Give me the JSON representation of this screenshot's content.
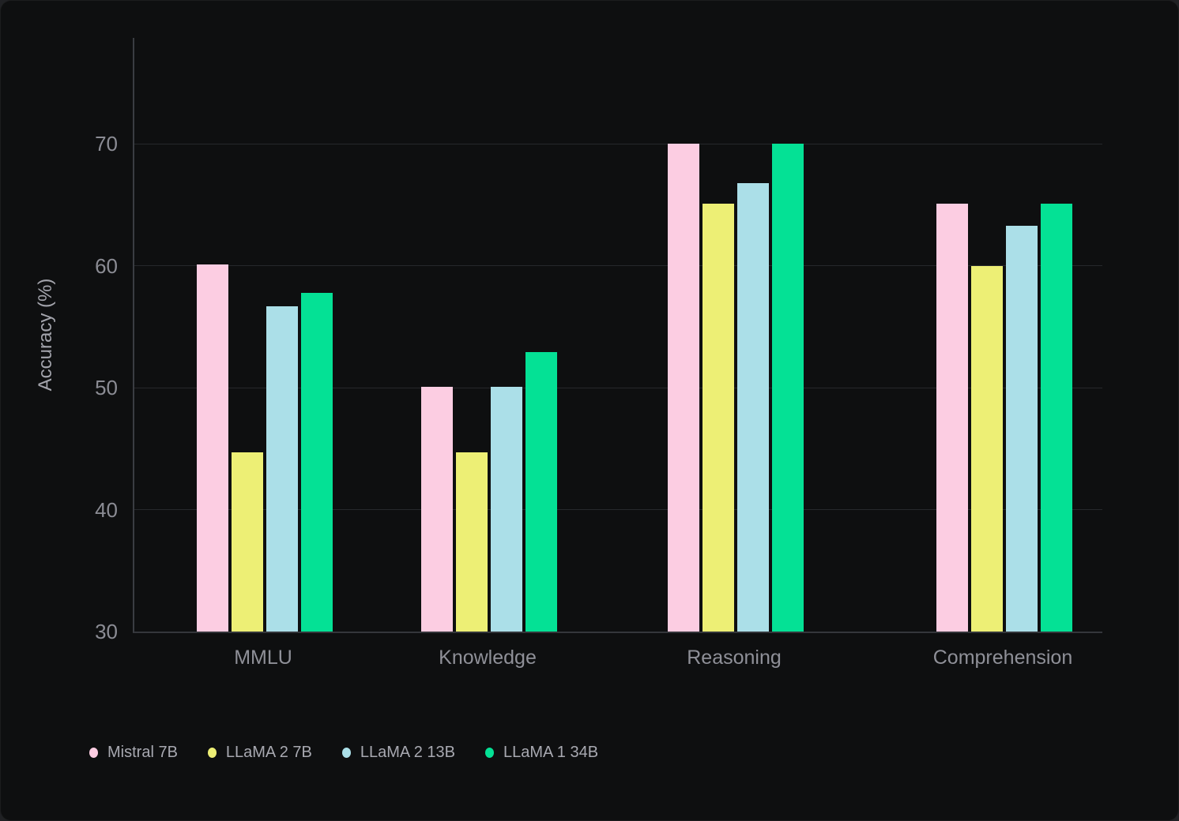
{
  "chart_data": {
    "type": "bar",
    "title": "",
    "xlabel": "",
    "ylabel": "Accuracy (%)",
    "categories": [
      "MMLU",
      "Knowledge",
      "Reasoning",
      "Comprehension"
    ],
    "series": [
      {
        "name": "Mistral 7B",
        "color": "#fccde2",
        "values": [
          60.1,
          50.1,
          70.0,
          65.1
        ]
      },
      {
        "name": "LLaMA 2 7B",
        "color": "#edef75",
        "values": [
          44.7,
          44.7,
          65.1,
          60.0
        ]
      },
      {
        "name": "LLaMA 2 13B",
        "color": "#abdfe8",
        "values": [
          56.7,
          50.1,
          66.8,
          63.3
        ]
      },
      {
        "name": "LLaMA 1 34B",
        "color": "#04e195",
        "values": [
          57.8,
          52.9,
          70.0,
          65.1
        ]
      }
    ],
    "ylim": [
      30,
      78.7
    ],
    "yticks": [
      30,
      40,
      50,
      60,
      70
    ],
    "grid": true,
    "legend_position": "bottom-left"
  },
  "colors": {
    "background": "#0e0f10",
    "gridline": "#26282c",
    "axis_spine": "#3a3d42",
    "tick_text": "#8b8c94",
    "category_text": "#8f9098",
    "axis_title_text": "#a3a4ac",
    "legend_text": "#a8a9b1"
  }
}
